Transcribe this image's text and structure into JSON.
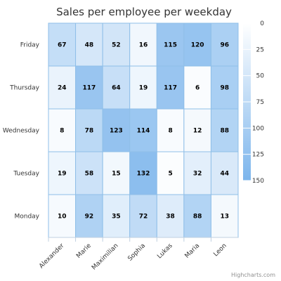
{
  "chart_data": {
    "type": "heatmap",
    "title": "Sales per employee per weekday",
    "x_categories": [
      "Alexander",
      "Marie",
      "Maximilian",
      "Sophia",
      "Lukas",
      "Maria",
      "Leon"
    ],
    "y_categories": [
      "Monday",
      "Tuesday",
      "Wednesday",
      "Thursday",
      "Friday"
    ],
    "values": [
      [
        10,
        19,
        8,
        24,
        67
      ],
      [
        92,
        58,
        78,
        117,
        48
      ],
      [
        35,
        15,
        123,
        64,
        52
      ],
      [
        72,
        132,
        114,
        19,
        16
      ],
      [
        38,
        5,
        8,
        117,
        115
      ],
      [
        88,
        32,
        12,
        6,
        120
      ],
      [
        13,
        44,
        88,
        98,
        96
      ]
    ],
    "values_note_order": "values[x_index][y_index]",
    "color_axis": {
      "min": 0,
      "max": 150,
      "ticks": [
        0,
        25,
        50,
        75,
        100,
        125,
        150
      ],
      "min_color": "#ffffff",
      "max_color": "#7cb5ec"
    },
    "legend_placement": "right",
    "credits": "Highcharts.com"
  }
}
